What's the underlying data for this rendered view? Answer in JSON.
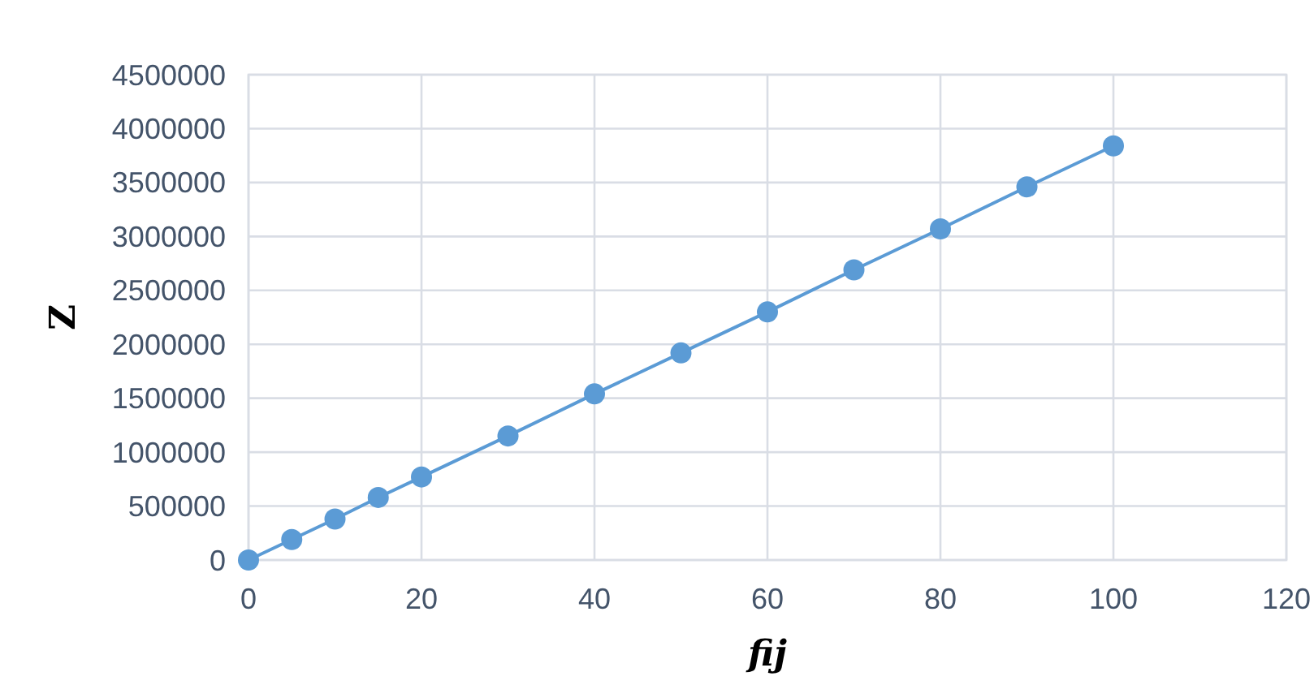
{
  "chart_data": {
    "type": "line",
    "xlabel": "fij",
    "ylabel": "Z",
    "x": [
      0,
      5,
      10,
      15,
      20,
      30,
      40,
      50,
      60,
      70,
      80,
      90,
      100
    ],
    "series": [
      {
        "color": "#5b9bd5",
        "values": [
          0,
          190000,
          380000,
          580000,
          770000,
          1150000,
          1540000,
          1920000,
          2300000,
          2690000,
          3070000,
          3460000,
          3840000
        ]
      }
    ],
    "xlim": [
      0,
      120
    ],
    "xticks": [
      0,
      20,
      40,
      60,
      80,
      100,
      120
    ],
    "ylim": [
      0,
      4500000
    ],
    "yticks": [
      0,
      500000,
      1000000,
      1500000,
      2000000,
      2500000,
      3000000,
      3500000,
      4000000,
      4500000
    ],
    "grid": true,
    "marker": "circle",
    "line_style": "solid"
  }
}
